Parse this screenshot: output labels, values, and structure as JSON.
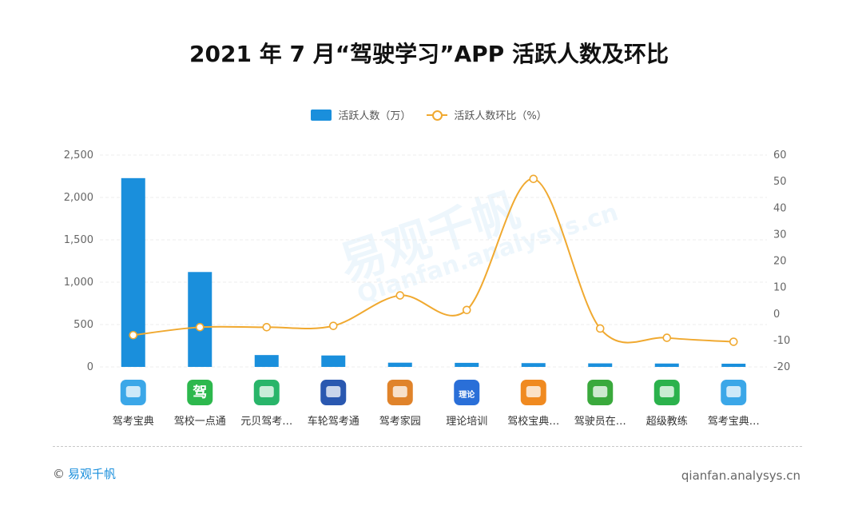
{
  "title": "2021 年 7 月“驾驶学习”APP 活跃人数及环比",
  "legend": {
    "bar_label": "活跃人数（万）",
    "line_label": "活跃人数环比（%）"
  },
  "watermark": {
    "brand": "易观千帆",
    "site": "Qianfan.analysys.cn"
  },
  "footer": {
    "copyright_symbol": "©",
    "brand": "易观千帆",
    "site": "qianfan.analysys.cn"
  },
  "colors": {
    "bar": "#1a8fdc",
    "line": "#f0a930"
  },
  "chart_data": {
    "type": "bar",
    "categories": [
      "驾考宝典",
      "驾校一点通",
      "元贝驾考…",
      "车轮驾考通",
      "驾考家园",
      "理论培训",
      "驾校宝典…",
      "驾驶员在…",
      "超级教练",
      "驾考宝典…"
    ],
    "series": [
      {
        "name": "活跃人数（万）",
        "type": "bar",
        "axis": "left",
        "values": [
          2228,
          1120,
          140,
          135,
          50,
          48,
          45,
          42,
          40,
          38
        ]
      },
      {
        "name": "活跃人数环比（%）",
        "type": "line",
        "axis": "right",
        "values": [
          -8,
          -5,
          -5,
          -4.5,
          7,
          1.5,
          51,
          -5.5,
          -9,
          -10.5
        ]
      }
    ],
    "y_left": {
      "ylim": [
        0,
        2500
      ],
      "ticks": [
        0,
        500,
        1000,
        1500,
        2000,
        2500
      ],
      "tick_labels": [
        "0",
        "500",
        "1,000",
        "1,500",
        "2,000",
        "2,500"
      ]
    },
    "y_right": {
      "ylim": [
        -20,
        60
      ],
      "ticks": [
        -20,
        -10,
        0,
        10,
        20,
        30,
        40,
        50,
        60
      ],
      "tick_labels": [
        "-20",
        "-10",
        "0",
        "10",
        "20",
        "30",
        "40",
        "50",
        "60"
      ]
    },
    "grid": true,
    "legend_position": "top-center",
    "icons": [
      "app-icon-jiakao-baodian",
      "app-icon-jiaxiao-yidiantong",
      "app-icon-yuanbei-jiakao",
      "app-icon-chelun-jiakaotong",
      "app-icon-jiakao-jiayuan",
      "app-icon-lilun-peixun",
      "app-icon-jiaxiao-baodian",
      "app-icon-jiashiyuan-zaixian",
      "app-icon-chaoji-jiaolian",
      "app-icon-jiakao-baodian-2"
    ],
    "icon_colors": [
      "#3ba7e8",
      "#2db84d",
      "#29b56a",
      "#2a58b0",
      "#e0832a",
      "#2a6fd8",
      "#f08a20",
      "#3aa93c",
      "#2bb24c",
      "#3ba7e8"
    ],
    "icon_glyphs": [
      "",
      "驾",
      "",
      "",
      "",
      "理论",
      "",
      "",
      "",
      ""
    ]
  }
}
